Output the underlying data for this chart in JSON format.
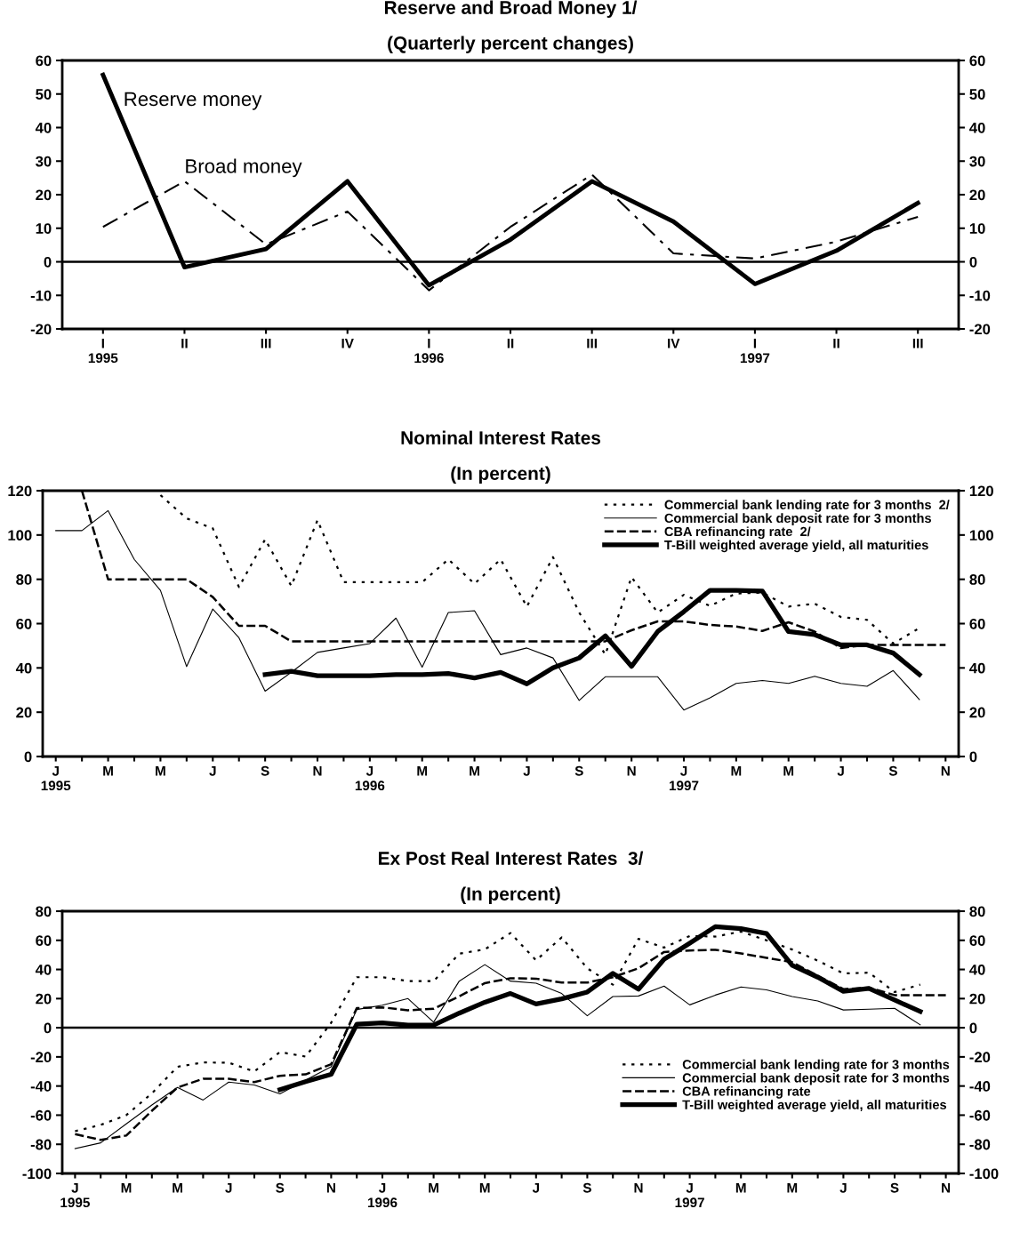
{
  "chart_data": [
    {
      "type": "line",
      "title": "Reserve and Broad Money 1/",
      "subtitle": "(Quarterly percent changes)",
      "categories": [
        "I\n1995",
        "II",
        "III",
        "IV",
        "I\n1996",
        "II",
        "III",
        "IV",
        "I\n1997",
        "II",
        "III"
      ],
      "series": [
        {
          "name": "Reserve money",
          "color": "#000000",
          "line_style": "solid",
          "values": [
            55.7,
            -1.6,
            3.8,
            24,
            -7,
            6.6,
            24,
            12,
            -6.6,
            3.3,
            17.5
          ]
        },
        {
          "name": "Broad money",
          "color": "#000000",
          "line_style": "dashdot",
          "values": [
            10.4,
            24,
            5.2,
            15,
            -8.5,
            10.4,
            26,
            2.5,
            1,
            6,
            13.4
          ]
        }
      ],
      "ylim": [
        -20,
        60
      ],
      "yticks": [
        -20,
        -10,
        0,
        10,
        20,
        30,
        40,
        50,
        60
      ],
      "y2lim": [
        -20,
        60
      ],
      "y2ticks": [
        -20,
        -10,
        0,
        10,
        20,
        30,
        40,
        50,
        60
      ],
      "ref_lines": [
        {
          "axis": "y",
          "value": 0,
          "color": "#000000"
        }
      ],
      "grid": false,
      "legend": false,
      "marker": "none"
    },
    {
      "type": "line",
      "title": "Nominal Interest Rates",
      "subtitle": "(In percent)",
      "categories": [
        "J\n1995",
        null,
        "M",
        null,
        "M",
        null,
        "J",
        null,
        "S",
        null,
        "N",
        null,
        "J\n1996",
        null,
        "M",
        null,
        "M",
        null,
        "J",
        null,
        "S",
        null,
        "N",
        null,
        "J\n1997",
        null,
        "M",
        null,
        "M",
        null,
        "J",
        null,
        "S",
        null,
        "N"
      ],
      "series": [
        {
          "name": "Commercial bank lending rate for 3 months  2/",
          "color": "#000000",
          "line_style": "dotted",
          "values": [
            null,
            null,
            null,
            null,
            118,
            107.5,
            103,
            76.5,
            98,
            77,
            106.7,
            78.7,
            78.7,
            78.7,
            78.7,
            89,
            78,
            89,
            67.7,
            90,
            65,
            46,
            81,
            65,
            73,
            68,
            73.6,
            74,
            67.7,
            69,
            63,
            61.7,
            51,
            58,
            null
          ]
        },
        {
          "name": "Commercial bank deposit rate for 3 months",
          "color": "#000000",
          "line_style": "solid",
          "values": [
            102,
            102,
            111,
            89,
            75,
            40.6,
            66.6,
            53.6,
            29.5,
            38,
            47,
            49,
            51,
            62.5,
            40.3,
            65,
            65.8,
            46,
            49,
            44.5,
            25.3,
            36,
            36,
            36,
            21,
            26.5,
            33,
            34.3,
            33,
            36.2,
            33,
            31.7,
            38.8,
            25.7,
            null
          ]
        },
        {
          "name": "CBA refinancing rate  2/",
          "color": "#000000",
          "line_style": "dashed",
          "values": [
            null,
            120,
            80,
            80,
            80,
            80,
            72,
            59,
            59,
            52,
            52,
            52,
            52,
            52,
            52,
            52,
            52,
            52,
            52,
            52,
            52,
            52,
            57,
            61,
            61,
            59.4,
            58.7,
            56.7,
            60.6,
            56.4,
            49,
            50.4,
            50.4,
            50.4,
            50.4
          ]
        },
        {
          "name": "T-Bill weighted average yield, all maturities",
          "color": "#000000",
          "line_style": "solid",
          "values": [
            null,
            null,
            null,
            null,
            null,
            null,
            null,
            null,
            37,
            38.5,
            36.5,
            36.5,
            36.5,
            37,
            37,
            37.5,
            35.5,
            38,
            32.8,
            40,
            44.5,
            54.5,
            40.7,
            56.4,
            65.4,
            75,
            75,
            74.7,
            56.4,
            55,
            50.4,
            50.4,
            46.7,
            37,
            null
          ]
        }
      ],
      "ylim": [
        0,
        120
      ],
      "yticks": [
        0,
        20,
        40,
        60,
        80,
        100,
        120
      ],
      "y2lim": [
        0,
        120
      ],
      "y2ticks": [
        0,
        20,
        40,
        60,
        80,
        100,
        120
      ],
      "grid": false,
      "legend": "upper right",
      "marker": "none"
    },
    {
      "type": "line",
      "title": "Ex Post Real Interest Rates  3/",
      "subtitle": "(In percent)",
      "categories": [
        "J\n1995",
        null,
        "M",
        null,
        "M",
        null,
        "J",
        null,
        "S",
        null,
        "N",
        null,
        "J\n1996",
        null,
        "M",
        null,
        "M",
        null,
        "J",
        null,
        "S",
        null,
        "N",
        null,
        "J\n1997",
        null,
        "M",
        null,
        "M",
        null,
        "J",
        null,
        "S",
        null,
        "N"
      ],
      "series": [
        {
          "name": "Commercial bank lending rate for 3 months",
          "color": "#000000",
          "line_style": "dotted",
          "values": [
            -71,
            -66.7,
            -60,
            -45,
            -26.8,
            -23.8,
            -24,
            -30,
            -16.7,
            -19.8,
            3.4,
            34.7,
            34.7,
            32,
            32,
            50.8,
            53.8,
            65,
            46.3,
            62,
            40.8,
            29.6,
            61,
            55,
            63,
            62.6,
            66,
            60,
            53.7,
            46,
            37.3,
            37.8,
            24.5,
            29.6,
            null
          ]
        },
        {
          "name": "Commercial bank deposit rate for 3 months",
          "color": "#000000",
          "line_style": "solid",
          "values": [
            -83,
            -79,
            -66,
            -53,
            -41,
            -49.6,
            -37.3,
            -39.3,
            -45.4,
            -35.9,
            -26.8,
            12.5,
            15.5,
            20,
            3.8,
            32,
            43.3,
            32,
            30.6,
            23.5,
            8.2,
            21.4,
            21.8,
            28.6,
            15.7,
            22.4,
            28,
            26,
            21.4,
            18.4,
            12.2,
            12.7,
            13.3,
            2,
            null
          ]
        },
        {
          "name": "CBA refinancing rate",
          "color": "#000000",
          "line_style": "dashed",
          "values": [
            -73,
            -77,
            -74,
            -57,
            -41,
            -35,
            -35,
            -37.3,
            -33,
            -32,
            -25,
            13.5,
            14,
            12,
            13,
            21.6,
            30.6,
            34,
            33.7,
            31,
            31,
            34.7,
            40.8,
            52,
            53,
            53.5,
            51,
            48,
            45,
            35.7,
            26.5,
            27.5,
            22.4,
            22.4,
            22.4
          ]
        },
        {
          "name": "T-Bill weighted average yield, all maturities",
          "color": "#000000",
          "line_style": "solid",
          "values": [
            null,
            null,
            null,
            null,
            null,
            null,
            null,
            null,
            -42.5,
            -37,
            -32,
            2.4,
            3.4,
            1.8,
            1.8,
            10,
            17.5,
            23.5,
            16.3,
            19.8,
            24.5,
            37.3,
            26.5,
            47,
            58,
            69.4,
            68,
            64.7,
            42.9,
            34.7,
            25,
            27,
            19,
            11.2,
            null
          ]
        }
      ],
      "ylim": [
        -100,
        80
      ],
      "yticks": [
        -100,
        -80,
        -60,
        -40,
        -20,
        0,
        20,
        40,
        60,
        80
      ],
      "y2lim": [
        -100,
        80
      ],
      "y2ticks": [
        -100,
        -80,
        -60,
        -40,
        -20,
        0,
        20,
        40,
        60,
        80
      ],
      "ref_lines": [
        {
          "axis": "y",
          "value": 0,
          "color": "#000000"
        }
      ],
      "grid": false,
      "legend": "lower right",
      "marker": "none"
    }
  ]
}
